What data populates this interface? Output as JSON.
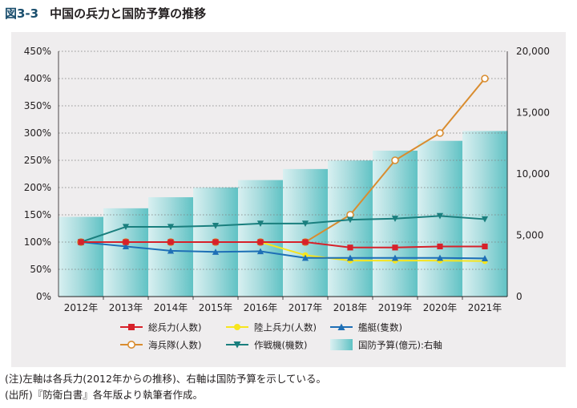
{
  "figure": {
    "number": "図3-3",
    "title": "中国の兵力と国防予算の推移"
  },
  "notes": [
    "(注)左軸は各兵力(2012年からの推移)、右軸は国防予算を示している。",
    "(出所)『防衛白書』各年版より執筆者作成。"
  ],
  "colors": {
    "total": "#d7212a",
    "ground": "#f7e51d",
    "ships": "#1e6fb6",
    "marines": "#d98c2f",
    "aircraft": "#1a7f7e",
    "budget": "#5fc2c4",
    "panel": "#efedee"
  },
  "chart_data": {
    "type": "bar+line",
    "categories": [
      "2012年",
      "2013年",
      "2014年",
      "2015年",
      "2016年",
      "2017年",
      "2018年",
      "2019年",
      "2020年",
      "2021年"
    ],
    "y_left": {
      "range": [
        0,
        450
      ],
      "ticks": [
        0,
        50,
        100,
        150,
        200,
        250,
        300,
        350,
        400,
        450
      ],
      "tick_labels": [
        "0%",
        "50%",
        "100%",
        "150%",
        "200%",
        "250%",
        "300%",
        "350%",
        "400%",
        "450%"
      ]
    },
    "y_right": {
      "range": [
        0,
        20000
      ],
      "ticks": [
        0,
        5000,
        10000,
        15000,
        20000
      ],
      "tick_labels": [
        "0",
        "5,000",
        "10,000",
        "15,000",
        "20,000"
      ]
    },
    "grid": "dotted horizontal lines",
    "bar_series": {
      "name": "国防予算(億元):右軸",
      "axis": "right",
      "values": [
        6500,
        7200,
        8100,
        8900,
        9500,
        10400,
        11100,
        11900,
        12700,
        13500
      ]
    },
    "line_series": [
      {
        "key": "total",
        "name": "総兵力(人数)",
        "marker": "square",
        "axis": "left",
        "values": [
          100,
          100,
          100,
          100,
          100,
          100,
          90,
          90,
          92,
          92
        ]
      },
      {
        "key": "ground",
        "name": "陸上兵力(人数)",
        "marker": "circle",
        "axis": "left",
        "values": [
          100,
          100,
          100,
          100,
          100,
          76,
          66,
          66,
          66,
          65
        ]
      },
      {
        "key": "ships",
        "name": "艦艇(隻数)",
        "marker": "triangle-up",
        "axis": "left",
        "values": [
          100,
          92,
          84,
          82,
          83,
          71,
          71,
          71,
          71,
          70
        ]
      },
      {
        "key": "marines",
        "name": "海兵隊(人数)",
        "marker": "open-circle",
        "axis": "left",
        "values": [
          100,
          100,
          100,
          100,
          100,
          100,
          150,
          250,
          300,
          400
        ]
      },
      {
        "key": "aircraft",
        "name": "作戦機(機数)",
        "marker": "triangle-down",
        "axis": "left",
        "values": [
          100,
          128,
          128,
          130,
          134,
          134,
          141,
          143,
          148,
          142
        ]
      }
    ],
    "legend": {
      "placement": "bottom-center",
      "order": [
        "total",
        "ground",
        "ships",
        "marines",
        "aircraft",
        "budget"
      ]
    }
  }
}
